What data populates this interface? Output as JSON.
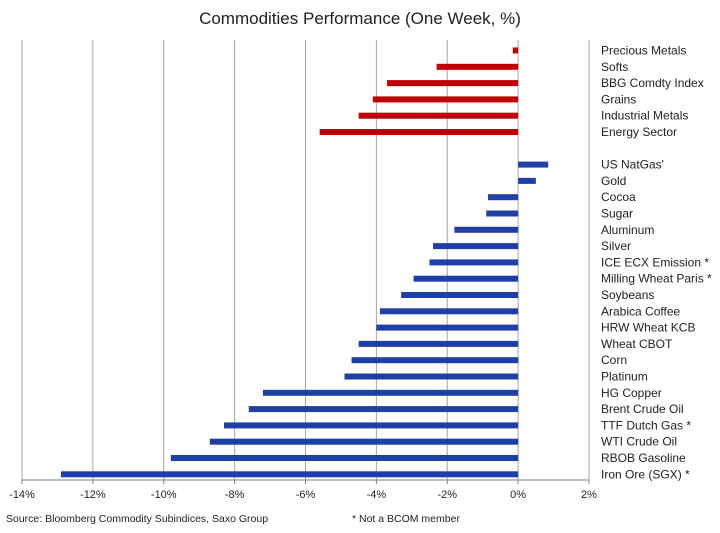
{
  "chart_data": {
    "type": "bar",
    "orientation": "horizontal",
    "title": "Commodities Performance (One Week, %)",
    "xlabel": "",
    "ylabel": "",
    "xlim": [
      -14,
      2
    ],
    "x_ticks": [
      -14,
      -12,
      -10,
      -8,
      -6,
      -4,
      -2,
      0,
      2
    ],
    "x_tick_labels": [
      "-14%",
      "-12%",
      "-10%",
      "-8%",
      "-6%",
      "-4%",
      "-2%",
      "0%",
      "2%"
    ],
    "grid": "vertical",
    "colors": {
      "indices": "#c00000",
      "individual": "#1f3fa8",
      "grid": "#a6a6a6",
      "axis": "#808080"
    },
    "groups": [
      {
        "color": "#c00000",
        "categories": [
          "Precious Metals",
          "Softs",
          "BBG Comdty Index",
          "Grains",
          "Industrial Metals",
          "Energy Sector"
        ],
        "values": [
          -0.15,
          -2.3,
          -3.7,
          -4.1,
          -4.5,
          -5.6
        ]
      },
      {
        "color": "#1f3fa8",
        "categories": [
          "US NatGas'",
          "Gold",
          "Cocoa",
          "Sugar",
          "Aluminum",
          "Silver",
          "ICE ECX Emission *",
          "Milling Wheat Paris *",
          "Soybeans",
          "Arabica Coffee",
          "HRW Wheat KCB",
          "Wheat CBOT",
          "Corn",
          "Platinum",
          "HG Copper",
          "Brent Crude Oil",
          "TTF Dutch Gas *",
          "WTI Crude Oil",
          "RBOB Gasoline",
          "Iron Ore (SGX) *"
        ],
        "values": [
          0.85,
          0.5,
          -0.85,
          -0.9,
          -1.8,
          -2.4,
          -2.5,
          -2.95,
          -3.3,
          -3.9,
          -4.0,
          -4.5,
          -4.7,
          -4.9,
          -7.2,
          -7.6,
          -8.3,
          -8.7,
          -9.8,
          -12.9
        ]
      }
    ]
  },
  "footer": {
    "source": "Source: Bloomberg Commodity Subindices, Saxo Group",
    "note": "* Not a BCOM member"
  }
}
